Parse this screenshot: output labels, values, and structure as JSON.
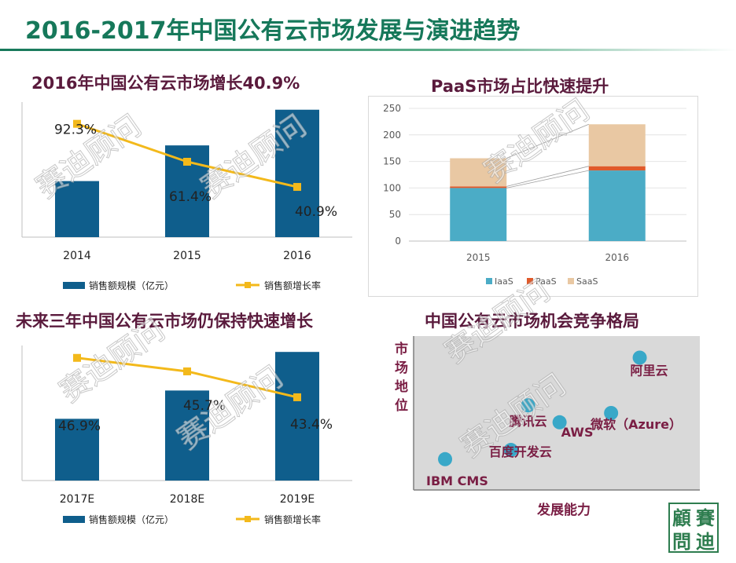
{
  "page": {
    "title": "2016-2017年中国公有云市场发展与演进趋势",
    "watermark": "赛迪顾问",
    "logo_chars": [
      "顧",
      "賽",
      "問",
      "迪"
    ]
  },
  "colors": {
    "title_green": "#16785a",
    "heading": "#5a1a3c",
    "bar": "#0f5e8c",
    "line": "#f3b91b",
    "iaas": "#4bacc6",
    "paas": "#e05a2b",
    "saas": "#e9c8a3",
    "dot": "#39a8c8",
    "label_maroon": "#7a1e44"
  },
  "chart_data": [
    {
      "id": "growth-2016",
      "type": "bar",
      "title": "2016年中国公有云市场增长40.9%",
      "categories": [
        "2014",
        "2015",
        "2016"
      ],
      "series": [
        {
          "name": "销售额规模（亿元）",
          "kind": "bar",
          "values": [
            44,
            72,
            100
          ]
        },
        {
          "name": "销售额增长率",
          "kind": "line",
          "values": [
            92.3,
            61.4,
            40.9
          ]
        }
      ],
      "data_labels": [
        "92.3%",
        "61.4%",
        "40.9%"
      ],
      "ylim": [
        0,
        106
      ],
      "y2lim": [
        0,
        110
      ],
      "legend": "bottom"
    },
    {
      "id": "paas-share",
      "type": "bar",
      "stacked": true,
      "title": "PaaS市场占比快速提升",
      "categories": [
        "2015",
        "2016"
      ],
      "series": [
        {
          "name": "IaaS",
          "values": [
            100,
            133
          ]
        },
        {
          "name": "PaaS",
          "values": [
            3,
            8
          ]
        },
        {
          "name": "SaaS",
          "values": [
            53,
            79
          ]
        }
      ],
      "yticks": [
        "0",
        "50",
        "100",
        "150",
        "200",
        "250"
      ],
      "ylim": [
        0,
        250
      ],
      "grid": true,
      "legend": "bottom"
    },
    {
      "id": "forecast",
      "type": "bar",
      "title": "未来三年中国公有云市场仍保持快速增长",
      "categories": [
        "2017E",
        "2018E",
        "2019E"
      ],
      "series": [
        {
          "name": "销售额规模（亿元）",
          "kind": "bar",
          "values": [
            48,
            70,
            100
          ]
        },
        {
          "name": "销售额增长率",
          "kind": "line",
          "values": [
            46.9,
            45.7,
            43.4
          ]
        }
      ],
      "data_labels": [
        "46.9%",
        "45.7%",
        "43.4%"
      ],
      "ylim": [
        0,
        105
      ],
      "y2lim": [
        36,
        48
      ],
      "legend": "bottom"
    },
    {
      "id": "competition",
      "type": "scatter",
      "title": "中国公有云市场机会竞争格局",
      "xlabel": "发展能力",
      "ylabel": "市场地位",
      "xlim": [
        0,
        10
      ],
      "ylim": [
        0,
        10
      ],
      "points": [
        {
          "name": "IBM CMS",
          "x": 1.1,
          "y": 2.0
        },
        {
          "name": "百度开发云",
          "x": 3.4,
          "y": 2.6
        },
        {
          "name": "腾讯云",
          "x": 4.0,
          "y": 5.5
        },
        {
          "name": "AWS",
          "x": 5.1,
          "y": 4.4
        },
        {
          "name": "微软（Azure）",
          "x": 6.9,
          "y": 5.0
        },
        {
          "name": "阿里云",
          "x": 7.9,
          "y": 8.6
        }
      ]
    }
  ]
}
